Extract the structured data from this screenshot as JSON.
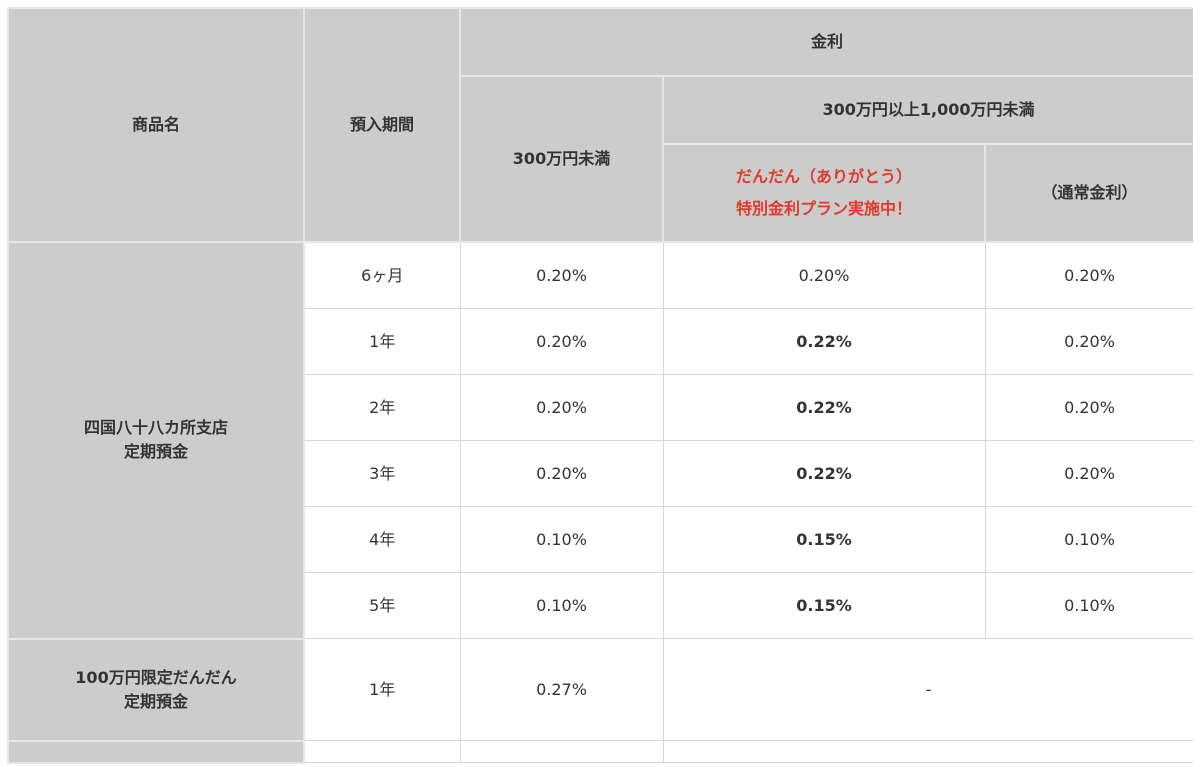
{
  "headers": {
    "product_name": "商品名",
    "deposit_period": "預入期間",
    "interest_rate": "金利",
    "under_3m": "300万円未満",
    "range_3m_10m": "300万円以上1,000万円未満",
    "special_plan_line1": "だんだん（ありがとう）",
    "special_plan_line2": "特別金利プラン実施中！",
    "normal_rate": "（通常金利）"
  },
  "products": [
    {
      "name_line1": "四国八十八カ所支店",
      "name_line2": "定期預金",
      "rows": [
        {
          "period": "6ヶ月",
          "under_3m": "0.20%",
          "special": "0.20%",
          "special_highlight": false,
          "normal": "0.20%"
        },
        {
          "period": "1年",
          "under_3m": "0.20%",
          "special": "0.22%",
          "special_highlight": true,
          "normal": "0.20%"
        },
        {
          "period": "2年",
          "under_3m": "0.20%",
          "special": "0.22%",
          "special_highlight": true,
          "normal": "0.20%"
        },
        {
          "period": "3年",
          "under_3m": "0.20%",
          "special": "0.22%",
          "special_highlight": true,
          "normal": "0.20%"
        },
        {
          "period": "4年",
          "under_3m": "0.10%",
          "special": "0.15%",
          "special_highlight": true,
          "normal": "0.10%"
        },
        {
          "period": "5年",
          "under_3m": "0.10%",
          "special": "0.15%",
          "special_highlight": true,
          "normal": "0.10%"
        }
      ]
    },
    {
      "name_line1": "100万円限定だんだん",
      "name_line2": "定期預金",
      "rows": [
        {
          "period": "1年",
          "under_3m": "0.27%",
          "merged": "-"
        }
      ]
    }
  ],
  "colors": {
    "header_bg": "#cccccc",
    "border": "#d6d6d6",
    "highlight_red": "#e03a2c",
    "text": "#333333"
  }
}
